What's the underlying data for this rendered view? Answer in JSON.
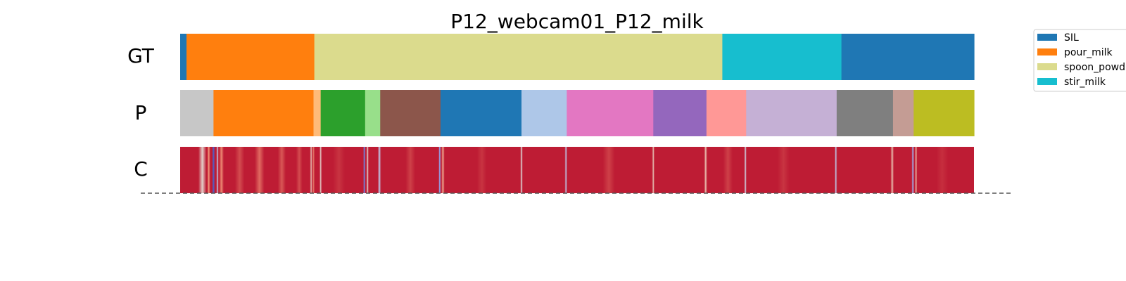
{
  "chart_data": {
    "type": "heatmap",
    "title": "P12_webcam01_P12_milk",
    "x_range": [
      0,
      1
    ],
    "rows": [
      {
        "label": "GT",
        "kind": "segments",
        "segments": [
          {
            "start": 0.0,
            "end": 0.008,
            "color": "#1f77b4"
          },
          {
            "start": 0.008,
            "end": 0.169,
            "color": "#ff7f0e"
          },
          {
            "start": 0.169,
            "end": 0.683,
            "color": "#dbdb8d"
          },
          {
            "start": 0.683,
            "end": 0.833,
            "color": "#17becf"
          },
          {
            "start": 0.833,
            "end": 1.0,
            "color": "#1f77b4"
          }
        ]
      },
      {
        "label": "P",
        "kind": "segments",
        "segments": [
          {
            "start": 0.0,
            "end": 0.042,
            "color": "#c7c7c7"
          },
          {
            "start": 0.042,
            "end": 0.168,
            "color": "#ff7f0e"
          },
          {
            "start": 0.168,
            "end": 0.177,
            "color": "#ffbb78"
          },
          {
            "start": 0.177,
            "end": 0.233,
            "color": "#2ca02c"
          },
          {
            "start": 0.233,
            "end": 0.252,
            "color": "#98df8a"
          },
          {
            "start": 0.252,
            "end": 0.328,
            "color": "#8c564b"
          },
          {
            "start": 0.328,
            "end": 0.43,
            "color": "#1f77b4"
          },
          {
            "start": 0.43,
            "end": 0.487,
            "color": "#aec7e8"
          },
          {
            "start": 0.487,
            "end": 0.596,
            "color": "#e377c2"
          },
          {
            "start": 0.596,
            "end": 0.663,
            "color": "#9467bd"
          },
          {
            "start": 0.663,
            "end": 0.713,
            "color": "#ff9896"
          },
          {
            "start": 0.713,
            "end": 0.827,
            "color": "#c5b0d5"
          },
          {
            "start": 0.827,
            "end": 0.898,
            "color": "#7f7f7f"
          },
          {
            "start": 0.898,
            "end": 0.924,
            "color": "#c49c94"
          },
          {
            "start": 0.924,
            "end": 1.0,
            "color": "#bcbd22"
          }
        ]
      },
      {
        "label": "C",
        "kind": "confidence",
        "colormap": "coolwarm",
        "base_value": 0.96,
        "variations": [
          {
            "pos": 0.028,
            "width": 0.01,
            "value": 0.55
          },
          {
            "pos": 0.036,
            "width": 0.004,
            "value": 0.75
          },
          {
            "pos": 0.042,
            "width": 0.004,
            "value": 0.05
          },
          {
            "pos": 0.047,
            "width": 0.003,
            "value": 0.4
          },
          {
            "pos": 0.052,
            "width": 0.006,
            "value": 0.78
          },
          {
            "pos": 0.075,
            "width": 0.012,
            "value": 0.88
          },
          {
            "pos": 0.1,
            "width": 0.012,
            "value": 0.83
          },
          {
            "pos": 0.128,
            "width": 0.01,
            "value": 0.86
          },
          {
            "pos": 0.15,
            "width": 0.008,
            "value": 0.88
          },
          {
            "pos": 0.165,
            "width": 0.003,
            "value": 0.6
          },
          {
            "pos": 0.168,
            "width": 0.003,
            "value": 0.8
          },
          {
            "pos": 0.177,
            "width": 0.003,
            "value": 0.55
          },
          {
            "pos": 0.2,
            "width": 0.015,
            "value": 0.92
          },
          {
            "pos": 0.232,
            "width": 0.003,
            "value": 0.15
          },
          {
            "pos": 0.236,
            "width": 0.003,
            "value": 0.55
          },
          {
            "pos": 0.251,
            "width": 0.004,
            "value": 0.4
          },
          {
            "pos": 0.29,
            "width": 0.012,
            "value": 0.9
          },
          {
            "pos": 0.327,
            "width": 0.003,
            "value": 0.25
          },
          {
            "pos": 0.331,
            "width": 0.004,
            "value": 0.7
          },
          {
            "pos": 0.38,
            "width": 0.012,
            "value": 0.92
          },
          {
            "pos": 0.43,
            "width": 0.003,
            "value": 0.5
          },
          {
            "pos": 0.486,
            "width": 0.003,
            "value": 0.4
          },
          {
            "pos": 0.54,
            "width": 0.015,
            "value": 0.9
          },
          {
            "pos": 0.596,
            "width": 0.003,
            "value": 0.6
          },
          {
            "pos": 0.662,
            "width": 0.004,
            "value": 0.62
          },
          {
            "pos": 0.69,
            "width": 0.012,
            "value": 0.9
          },
          {
            "pos": 0.712,
            "width": 0.003,
            "value": 0.45
          },
          {
            "pos": 0.76,
            "width": 0.015,
            "value": 0.92
          },
          {
            "pos": 0.826,
            "width": 0.003,
            "value": 0.4
          },
          {
            "pos": 0.897,
            "width": 0.004,
            "value": 0.62
          },
          {
            "pos": 0.923,
            "width": 0.003,
            "value": 0.3
          },
          {
            "pos": 0.927,
            "width": 0.003,
            "value": 0.65
          },
          {
            "pos": 0.96,
            "width": 0.015,
            "value": 0.93
          }
        ]
      }
    ],
    "legend": {
      "placement": "top-right",
      "entries": [
        {
          "label": "SIL",
          "color": "#1f77b4"
        },
        {
          "label": "pour_milk",
          "color": "#ff7f0e"
        },
        {
          "label": "spoon_powd",
          "color": "#dbdb8d"
        },
        {
          "label": "stir_milk",
          "color": "#17becf"
        }
      ]
    }
  }
}
